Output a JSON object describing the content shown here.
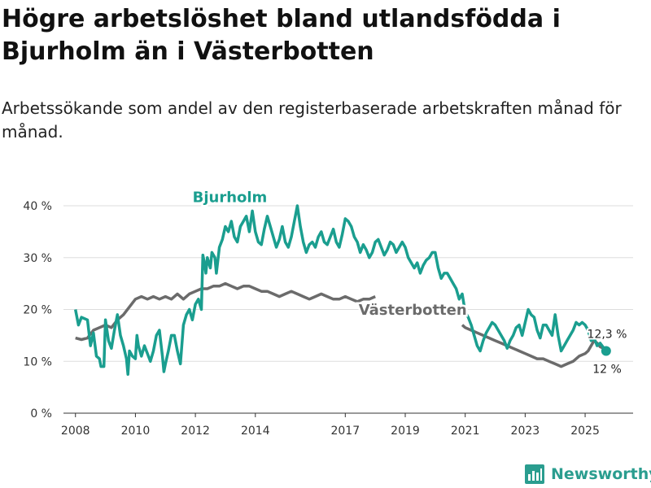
{
  "title": "Högre arbetslöshet bland utlandsfödda i Bjurholm än i Västerbotten",
  "subtitle": "Arbetssökande som andel av den registerbaserade arbetskraften månad för månad.",
  "brand": {
    "name": "Newsworthy",
    "logo_icon": "bar-chart-logo-icon",
    "color": "#2a9d8f"
  },
  "chart_data": {
    "type": "line",
    "title": "",
    "xlabel": "",
    "ylabel": "",
    "grid": true,
    "legend": "inline labels",
    "xlim": [
      2007.6,
      2026.6
    ],
    "ylim": [
      0,
      40
    ],
    "y_ticks": [
      {
        "value": 0,
        "label": "0 %"
      },
      {
        "value": 10,
        "label": "10 %"
      },
      {
        "value": 20,
        "label": "20 %"
      },
      {
        "value": 30,
        "label": "30 %"
      },
      {
        "value": 40,
        "label": "40 %"
      }
    ],
    "x_ticks": [
      {
        "value": 2008,
        "label": "2008"
      },
      {
        "value": 2010,
        "label": "2010"
      },
      {
        "value": 2012,
        "label": "2012"
      },
      {
        "value": 2014,
        "label": "2014"
      },
      {
        "value": 2017,
        "label": "2017"
      },
      {
        "value": 2019,
        "label": "2019"
      },
      {
        "value": 2021,
        "label": "2021"
      },
      {
        "value": 2023,
        "label": "2023"
      },
      {
        "value": 2025,
        "label": "2025"
      }
    ],
    "series": [
      {
        "name": "Bjurholm",
        "color": "#1a9e8f",
        "label_pos": [
          2013.15,
          40.7
        ],
        "end_label": "12 %",
        "end_value": 12,
        "points": [
          [
            2008.0,
            20.0
          ],
          [
            2008.1,
            17.0
          ],
          [
            2008.2,
            18.5
          ],
          [
            2008.4,
            18.0
          ],
          [
            2008.5,
            13.0
          ],
          [
            2008.6,
            15.5
          ],
          [
            2008.7,
            11.0
          ],
          [
            2008.8,
            10.5
          ],
          [
            2008.85,
            9.0
          ],
          [
            2008.95,
            9.0
          ],
          [
            2009.0,
            18.0
          ],
          [
            2009.1,
            14.0
          ],
          [
            2009.2,
            12.5
          ],
          [
            2009.3,
            16.0
          ],
          [
            2009.4,
            19.0
          ],
          [
            2009.5,
            15.0
          ],
          [
            2009.6,
            13.0
          ],
          [
            2009.7,
            10.5
          ],
          [
            2009.75,
            7.5
          ],
          [
            2009.8,
            12.0
          ],
          [
            2009.9,
            11.0
          ],
          [
            2010.0,
            10.5
          ],
          [
            2010.05,
            15.0
          ],
          [
            2010.1,
            13.0
          ],
          [
            2010.2,
            11.0
          ],
          [
            2010.3,
            13.0
          ],
          [
            2010.4,
            11.5
          ],
          [
            2010.5,
            10.0
          ],
          [
            2010.6,
            12.0
          ],
          [
            2010.7,
            15.0
          ],
          [
            2010.8,
            16.0
          ],
          [
            2010.9,
            11.0
          ],
          [
            2010.95,
            8.0
          ],
          [
            2011.0,
            9.5
          ],
          [
            2011.1,
            12.0
          ],
          [
            2011.2,
            15.0
          ],
          [
            2011.3,
            15.0
          ],
          [
            2011.4,
            12.0
          ],
          [
            2011.5,
            9.5
          ],
          [
            2011.6,
            17.0
          ],
          [
            2011.7,
            19.0
          ],
          [
            2011.8,
            20.0
          ],
          [
            2011.9,
            18.0
          ],
          [
            2012.0,
            21.0
          ],
          [
            2012.1,
            22.0
          ],
          [
            2012.2,
            20.0
          ],
          [
            2012.25,
            30.5
          ],
          [
            2012.3,
            29.0
          ],
          [
            2012.35,
            27.0
          ],
          [
            2012.4,
            30.0
          ],
          [
            2012.5,
            28.0
          ],
          [
            2012.55,
            31.0
          ],
          [
            2012.65,
            30.0
          ],
          [
            2012.7,
            27.0
          ],
          [
            2012.8,
            32.0
          ],
          [
            2012.9,
            33.5
          ],
          [
            2013.0,
            36.0
          ],
          [
            2013.1,
            35.0
          ],
          [
            2013.2,
            37.0
          ],
          [
            2013.3,
            34.0
          ],
          [
            2013.4,
            33.0
          ],
          [
            2013.5,
            36.0
          ],
          [
            2013.6,
            37.0
          ],
          [
            2013.7,
            38.0
          ],
          [
            2013.8,
            35.0
          ],
          [
            2013.9,
            39.0
          ],
          [
            2014.0,
            35.0
          ],
          [
            2014.1,
            33.0
          ],
          [
            2014.2,
            32.5
          ],
          [
            2014.3,
            35.5
          ],
          [
            2014.4,
            38.0
          ],
          [
            2014.5,
            36.0
          ],
          [
            2014.6,
            34.0
          ],
          [
            2014.7,
            32.0
          ],
          [
            2014.8,
            33.5
          ],
          [
            2014.9,
            36.0
          ],
          [
            2015.0,
            33.0
          ],
          [
            2015.1,
            32.0
          ],
          [
            2015.2,
            34.0
          ],
          [
            2015.3,
            37.0
          ],
          [
            2015.4,
            40.0
          ],
          [
            2015.5,
            36.0
          ],
          [
            2015.6,
            33.0
          ],
          [
            2015.7,
            31.0
          ],
          [
            2015.8,
            32.5
          ],
          [
            2015.9,
            33.0
          ],
          [
            2016.0,
            32.0
          ],
          [
            2016.1,
            34.0
          ],
          [
            2016.2,
            35.0
          ],
          [
            2016.3,
            33.0
          ],
          [
            2016.4,
            32.5
          ],
          [
            2016.5,
            34.0
          ],
          [
            2016.6,
            35.5
          ],
          [
            2016.7,
            33.0
          ],
          [
            2016.8,
            32.0
          ],
          [
            2016.9,
            34.5
          ],
          [
            2017.0,
            37.5
          ],
          [
            2017.1,
            37.0
          ],
          [
            2017.2,
            36.0
          ],
          [
            2017.3,
            34.0
          ],
          [
            2017.4,
            33.0
          ],
          [
            2017.5,
            31.0
          ],
          [
            2017.6,
            32.5
          ],
          [
            2017.7,
            31.5
          ],
          [
            2017.8,
            30.0
          ],
          [
            2017.9,
            31.0
          ],
          [
            2018.0,
            33.0
          ],
          [
            2018.1,
            33.5
          ],
          [
            2018.2,
            32.0
          ],
          [
            2018.3,
            30.5
          ],
          [
            2018.4,
            31.5
          ],
          [
            2018.5,
            33.0
          ],
          [
            2018.6,
            32.5
          ],
          [
            2018.7,
            31.0
          ],
          [
            2018.8,
            32.0
          ],
          [
            2018.9,
            33.0
          ],
          [
            2019.0,
            32.0
          ],
          [
            2019.1,
            30.0
          ],
          [
            2019.2,
            29.0
          ],
          [
            2019.3,
            28.0
          ],
          [
            2019.4,
            29.0
          ],
          [
            2019.5,
            27.0
          ],
          [
            2019.6,
            28.5
          ],
          [
            2019.7,
            29.5
          ],
          [
            2019.8,
            30.0
          ],
          [
            2019.9,
            31.0
          ],
          [
            2020.0,
            31.0
          ],
          [
            2020.1,
            28.0
          ],
          [
            2020.2,
            26.0
          ],
          [
            2020.3,
            27.0
          ],
          [
            2020.4,
            27.0
          ],
          [
            2020.5,
            26.0
          ],
          [
            2020.6,
            25.0
          ],
          [
            2020.7,
            24.0
          ],
          [
            2020.8,
            22.0
          ],
          [
            2020.9,
            23.0
          ],
          [
            2021.0,
            19.5
          ],
          [
            2021.1,
            18.5
          ],
          [
            2021.2,
            17.0
          ],
          [
            2021.3,
            15.0
          ],
          [
            2021.4,
            13.0
          ],
          [
            2021.5,
            12.0
          ],
          [
            2021.6,
            14.0
          ],
          [
            2021.7,
            15.5
          ],
          [
            2021.8,
            16.5
          ],
          [
            2021.9,
            17.5
          ],
          [
            2022.0,
            17.0
          ],
          [
            2022.1,
            16.0
          ],
          [
            2022.2,
            15.0
          ],
          [
            2022.3,
            14.0
          ],
          [
            2022.4,
            12.5
          ],
          [
            2022.5,
            14.0
          ],
          [
            2022.6,
            15.0
          ],
          [
            2022.7,
            16.5
          ],
          [
            2022.8,
            17.0
          ],
          [
            2022.9,
            15.0
          ],
          [
            2023.0,
            17.5
          ],
          [
            2023.1,
            20.0
          ],
          [
            2023.2,
            19.0
          ],
          [
            2023.3,
            18.5
          ],
          [
            2023.4,
            16.0
          ],
          [
            2023.5,
            14.5
          ],
          [
            2023.6,
            17.0
          ],
          [
            2023.7,
            17.0
          ],
          [
            2023.8,
            16.0
          ],
          [
            2023.9,
            15.0
          ],
          [
            2024.0,
            19.0
          ],
          [
            2024.1,
            15.0
          ],
          [
            2024.2,
            12.0
          ],
          [
            2024.3,
            13.0
          ],
          [
            2024.4,
            14.0
          ],
          [
            2024.5,
            15.0
          ],
          [
            2024.6,
            16.0
          ],
          [
            2024.7,
            17.5
          ],
          [
            2024.8,
            17.0
          ],
          [
            2024.9,
            17.5
          ],
          [
            2025.0,
            17.0
          ],
          [
            2025.1,
            16.0
          ],
          [
            2025.2,
            14.0
          ],
          [
            2025.3,
            14.5
          ],
          [
            2025.4,
            13.0
          ],
          [
            2025.5,
            13.5
          ],
          [
            2025.7,
            12.0
          ]
        ]
      },
      {
        "name": "Västerbotten",
        "color": "#6b6b6b",
        "label_pos": [
          2019.25,
          19.0
        ],
        "end_label": "12,3 %",
        "end_value": 12.3,
        "points": [
          [
            2008.0,
            14.5
          ],
          [
            2008.2,
            14.2
          ],
          [
            2008.4,
            14.5
          ],
          [
            2008.6,
            16.0
          ],
          [
            2008.8,
            16.5
          ],
          [
            2009.0,
            17.0
          ],
          [
            2009.2,
            16.5
          ],
          [
            2009.4,
            18.0
          ],
          [
            2009.6,
            19.0
          ],
          [
            2009.8,
            20.5
          ],
          [
            2010.0,
            22.0
          ],
          [
            2010.2,
            22.5
          ],
          [
            2010.4,
            22.0
          ],
          [
            2010.6,
            22.5
          ],
          [
            2010.8,
            22.0
          ],
          [
            2011.0,
            22.5
          ],
          [
            2011.2,
            22.0
          ],
          [
            2011.4,
            23.0
          ],
          [
            2011.6,
            22.0
          ],
          [
            2011.8,
            23.0
          ],
          [
            2012.0,
            23.5
          ],
          [
            2012.2,
            24.0
          ],
          [
            2012.4,
            24.0
          ],
          [
            2012.6,
            24.5
          ],
          [
            2012.8,
            24.5
          ],
          [
            2013.0,
            25.0
          ],
          [
            2013.2,
            24.5
          ],
          [
            2013.4,
            24.0
          ],
          [
            2013.6,
            24.5
          ],
          [
            2013.8,
            24.5
          ],
          [
            2014.0,
            24.0
          ],
          [
            2014.2,
            23.5
          ],
          [
            2014.4,
            23.5
          ],
          [
            2014.6,
            23.0
          ],
          [
            2014.8,
            22.5
          ],
          [
            2015.0,
            23.0
          ],
          [
            2015.2,
            23.5
          ],
          [
            2015.4,
            23.0
          ],
          [
            2015.6,
            22.5
          ],
          [
            2015.8,
            22.0
          ],
          [
            2016.0,
            22.5
          ],
          [
            2016.2,
            23.0
          ],
          [
            2016.4,
            22.5
          ],
          [
            2016.6,
            22.0
          ],
          [
            2016.8,
            22.0
          ],
          [
            2017.0,
            22.5
          ],
          [
            2017.2,
            22.0
          ],
          [
            2017.4,
            21.5
          ],
          [
            2017.6,
            22.0
          ],
          [
            2017.8,
            22.0
          ],
          [
            2018.0,
            22.5
          ]
        ],
        "points_tail": [
          [
            2020.9,
            17.0
          ],
          [
            2021.0,
            16.5
          ],
          [
            2021.2,
            16.0
          ],
          [
            2021.4,
            15.5
          ],
          [
            2021.6,
            15.0
          ],
          [
            2021.8,
            14.5
          ],
          [
            2022.0,
            14.0
          ],
          [
            2022.2,
            13.5
          ],
          [
            2022.4,
            13.0
          ],
          [
            2022.6,
            12.5
          ],
          [
            2022.8,
            12.0
          ],
          [
            2023.0,
            11.5
          ],
          [
            2023.2,
            11.0
          ],
          [
            2023.4,
            10.5
          ],
          [
            2023.6,
            10.5
          ],
          [
            2023.8,
            10.0
          ],
          [
            2024.0,
            9.5
          ],
          [
            2024.2,
            9.0
          ],
          [
            2024.4,
            9.5
          ],
          [
            2024.6,
            10.0
          ],
          [
            2024.8,
            11.0
          ],
          [
            2025.0,
            11.5
          ],
          [
            2025.1,
            12.0
          ],
          [
            2025.2,
            13.0
          ],
          [
            2025.3,
            14.0
          ],
          [
            2025.4,
            13.5
          ],
          [
            2025.5,
            12.8
          ],
          [
            2025.7,
            12.3
          ]
        ]
      }
    ]
  }
}
